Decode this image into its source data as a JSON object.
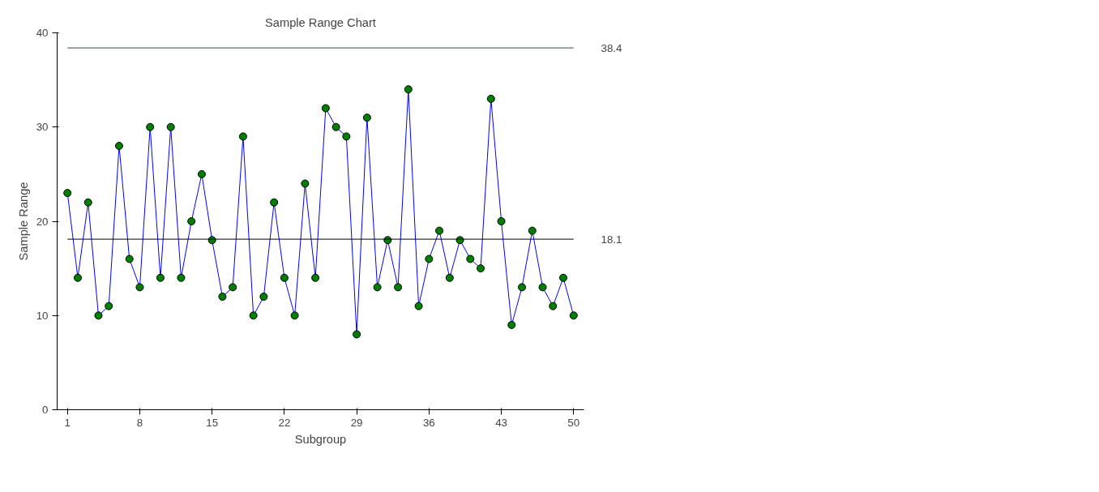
{
  "chart_data": {
    "type": "line",
    "title": "Sample Range Chart",
    "xlabel": "Subgroup",
    "ylabel": "Sample Range",
    "x": [
      1,
      2,
      3,
      4,
      5,
      6,
      7,
      8,
      9,
      10,
      11,
      12,
      13,
      14,
      15,
      16,
      17,
      18,
      19,
      20,
      21,
      22,
      23,
      24,
      25,
      26,
      27,
      28,
      29,
      30,
      31,
      32,
      33,
      34,
      35,
      36,
      37,
      38,
      39,
      40,
      41,
      42,
      43,
      44,
      45,
      46,
      47,
      48,
      49,
      50
    ],
    "series": [
      {
        "color": "#0000ff",
        "values": [
          23,
          14,
          22,
          10,
          11,
          28,
          16,
          13,
          30,
          14,
          30,
          14,
          20,
          25,
          18,
          12,
          13,
          29,
          10,
          12,
          22,
          14,
          10,
          24,
          14,
          32,
          30,
          29,
          8,
          31,
          13,
          18,
          13,
          34,
          11,
          16,
          19,
          14,
          18,
          16,
          15,
          33,
          20,
          9,
          13,
          19,
          13,
          11,
          14,
          10
        ]
      }
    ],
    "marker": "circle",
    "line_style": "solid",
    "xlim": [
      0,
      51
    ],
    "xticks": [
      1,
      8,
      15,
      22,
      29,
      36,
      43,
      50
    ],
    "ylim": [
      0,
      40
    ],
    "yticks": [
      0,
      10,
      20,
      30,
      40
    ],
    "grid": false,
    "ref_lines": [
      {
        "axis": "y",
        "value": 38.4,
        "label": "38.4",
        "color": "#2f4f4f"
      },
      {
        "axis": "y",
        "value": 18.1,
        "label": "18.1",
        "color": "#000000"
      }
    ]
  }
}
